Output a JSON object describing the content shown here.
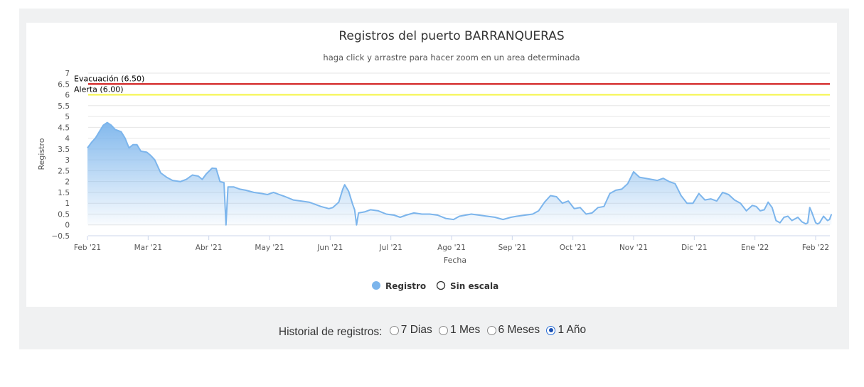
{
  "chart_data": {
    "type": "area",
    "title": "Registros del puerto BARRANQUERAS",
    "subtitle": "haga click y arrastre para hacer zoom en un area determinada",
    "xlabel": "Fecha",
    "ylabel": "Registro",
    "ylim": [
      -0.5,
      7
    ],
    "yticks": [
      "7",
      "6.5",
      "6",
      "5.5",
      "5",
      "4.5",
      "4",
      "3.5",
      "3",
      "2.5",
      "2",
      "1.5",
      "1",
      "0.5",
      "0",
      "−0.5"
    ],
    "x_ticks": [
      "Feb '21",
      "Mar '21",
      "Abr '21",
      "May '21",
      "Jun '21",
      "Jul '21",
      "Ago '21",
      "Sep '21",
      "Oct '21",
      "Nov '21",
      "Dic '21",
      "Ene '22",
      "Feb '22"
    ],
    "x_range": [
      "2021-01-30",
      "2022-02-02"
    ],
    "grid": true,
    "legend_position": "bottom",
    "plot_lines": [
      {
        "label": "Evacuación (6.50)",
        "value": 6.5,
        "color": "#cc0000"
      },
      {
        "label": "Alerta (6.00)",
        "value": 6.0,
        "color": "#f5f542"
      }
    ],
    "series": [
      {
        "name": "Registro",
        "color": "#7cb5ec",
        "points": [
          [
            "2021-01-30",
            3.55
          ],
          [
            "2021-02-01",
            3.8
          ],
          [
            "2021-02-03",
            4.0
          ],
          [
            "2021-02-05",
            4.3
          ],
          [
            "2021-02-07",
            4.6
          ],
          [
            "2021-02-09",
            4.72
          ],
          [
            "2021-02-11",
            4.6
          ],
          [
            "2021-02-13",
            4.4
          ],
          [
            "2021-02-16",
            4.3
          ],
          [
            "2021-02-18",
            4.0
          ],
          [
            "2021-02-20",
            3.55
          ],
          [
            "2021-02-22",
            3.7
          ],
          [
            "2021-02-24",
            3.7
          ],
          [
            "2021-02-26",
            3.4
          ],
          [
            "2021-03-01",
            3.35
          ],
          [
            "2021-03-03",
            3.2
          ],
          [
            "2021-03-05",
            3.0
          ],
          [
            "2021-03-08",
            2.4
          ],
          [
            "2021-03-11",
            2.2
          ],
          [
            "2021-03-14",
            2.05
          ],
          [
            "2021-03-18",
            2.0
          ],
          [
            "2021-03-21",
            2.1
          ],
          [
            "2021-03-24",
            2.3
          ],
          [
            "2021-03-27",
            2.25
          ],
          [
            "2021-03-29",
            2.1
          ],
          [
            "2021-03-31",
            2.35
          ],
          [
            "2021-04-03",
            2.62
          ],
          [
            "2021-04-05",
            2.6
          ],
          [
            "2021-04-07",
            2.0
          ],
          [
            "2021-04-09",
            1.95
          ],
          [
            "2021-04-10",
            0.0
          ],
          [
            "2021-04-11",
            1.75
          ],
          [
            "2021-04-14",
            1.75
          ],
          [
            "2021-04-17",
            1.65
          ],
          [
            "2021-04-20",
            1.6
          ],
          [
            "2021-04-24",
            1.5
          ],
          [
            "2021-04-28",
            1.45
          ],
          [
            "2021-05-01",
            1.4
          ],
          [
            "2021-05-04",
            1.5
          ],
          [
            "2021-05-07",
            1.4
          ],
          [
            "2021-05-10",
            1.3
          ],
          [
            "2021-05-14",
            1.15
          ],
          [
            "2021-05-18",
            1.1
          ],
          [
            "2021-05-22",
            1.05
          ],
          [
            "2021-05-25",
            0.95
          ],
          [
            "2021-05-28",
            0.85
          ],
          [
            "2021-06-01",
            0.75
          ],
          [
            "2021-06-03",
            0.8
          ],
          [
            "2021-06-06",
            1.05
          ],
          [
            "2021-06-08",
            1.65
          ],
          [
            "2021-06-09",
            1.85
          ],
          [
            "2021-06-11",
            1.55
          ],
          [
            "2021-06-13",
            0.95
          ],
          [
            "2021-06-14",
            0.7
          ],
          [
            "2021-06-15",
            0.0
          ],
          [
            "2021-06-16",
            0.55
          ],
          [
            "2021-06-19",
            0.6
          ],
          [
            "2021-06-22",
            0.7
          ],
          [
            "2021-06-26",
            0.65
          ],
          [
            "2021-06-30",
            0.5
          ],
          [
            "2021-07-04",
            0.45
          ],
          [
            "2021-07-07",
            0.35
          ],
          [
            "2021-07-10",
            0.45
          ],
          [
            "2021-07-14",
            0.55
          ],
          [
            "2021-07-18",
            0.5
          ],
          [
            "2021-07-22",
            0.5
          ],
          [
            "2021-07-26",
            0.45
          ],
          [
            "2021-07-30",
            0.3
          ],
          [
            "2021-08-03",
            0.25
          ],
          [
            "2021-08-06",
            0.4
          ],
          [
            "2021-08-09",
            0.45
          ],
          [
            "2021-08-12",
            0.5
          ],
          [
            "2021-08-16",
            0.45
          ],
          [
            "2021-08-20",
            0.4
          ],
          [
            "2021-08-24",
            0.35
          ],
          [
            "2021-08-28",
            0.25
          ],
          [
            "2021-09-01",
            0.35
          ],
          [
            "2021-09-04",
            0.4
          ],
          [
            "2021-09-08",
            0.45
          ],
          [
            "2021-09-12",
            0.5
          ],
          [
            "2021-09-15",
            0.65
          ],
          [
            "2021-09-18",
            1.05
          ],
          [
            "2021-09-21",
            1.35
          ],
          [
            "2021-09-24",
            1.3
          ],
          [
            "2021-09-27",
            1.0
          ],
          [
            "2021-09-30",
            1.1
          ],
          [
            "2021-10-03",
            0.75
          ],
          [
            "2021-10-06",
            0.8
          ],
          [
            "2021-10-09",
            0.5
          ],
          [
            "2021-10-12",
            0.55
          ],
          [
            "2021-10-15",
            0.8
          ],
          [
            "2021-10-18",
            0.85
          ],
          [
            "2021-10-21",
            1.45
          ],
          [
            "2021-10-24",
            1.6
          ],
          [
            "2021-10-27",
            1.65
          ],
          [
            "2021-10-30",
            1.9
          ],
          [
            "2021-11-02",
            2.45
          ],
          [
            "2021-11-05",
            2.2
          ],
          [
            "2021-11-08",
            2.15
          ],
          [
            "2021-11-11",
            2.1
          ],
          [
            "2021-11-14",
            2.05
          ],
          [
            "2021-11-17",
            2.15
          ],
          [
            "2021-11-20",
            2.0
          ],
          [
            "2021-11-23",
            1.9
          ],
          [
            "2021-11-26",
            1.35
          ],
          [
            "2021-11-29",
            1.0
          ],
          [
            "2021-12-02",
            1.0
          ],
          [
            "2021-12-05",
            1.45
          ],
          [
            "2021-12-08",
            1.15
          ],
          [
            "2021-12-11",
            1.2
          ],
          [
            "2021-12-14",
            1.1
          ],
          [
            "2021-12-17",
            1.5
          ],
          [
            "2021-12-20",
            1.4
          ],
          [
            "2021-12-23",
            1.15
          ],
          [
            "2021-12-26",
            1.0
          ],
          [
            "2021-12-29",
            0.65
          ],
          [
            "2022-01-01",
            0.9
          ],
          [
            "2022-01-03",
            0.85
          ],
          [
            "2022-01-05",
            0.65
          ],
          [
            "2022-01-07",
            0.7
          ],
          [
            "2022-01-09",
            1.05
          ],
          [
            "2022-01-11",
            0.8
          ],
          [
            "2022-01-13",
            0.2
          ],
          [
            "2022-01-15",
            0.1
          ],
          [
            "2022-01-17",
            0.35
          ],
          [
            "2022-01-19",
            0.4
          ],
          [
            "2022-01-21",
            0.2
          ],
          [
            "2022-01-24",
            0.35
          ],
          [
            "2022-01-26",
            0.15
          ],
          [
            "2022-01-28",
            0.05
          ],
          [
            "2022-01-29",
            0.1
          ],
          [
            "2022-01-30",
            0.8
          ],
          [
            "2022-01-31",
            0.6
          ],
          [
            "2022-02-02",
            0.1
          ],
          [
            "2022-02-03",
            0.05
          ],
          [
            "2022-02-04",
            0.1
          ],
          [
            "2022-02-06",
            0.4
          ],
          [
            "2022-02-08",
            0.2
          ],
          [
            "2022-02-09",
            0.25
          ],
          [
            "2022-02-10",
            0.5
          ]
        ]
      }
    ]
  },
  "legend": {
    "items": [
      {
        "label": "Registro",
        "color": "#7cb5ec",
        "filled": true
      },
      {
        "label": "Sin escala",
        "color": "#333333",
        "filled": false
      }
    ]
  },
  "history": {
    "label": "Historial de registros:",
    "options": [
      {
        "label": "7 Dias",
        "checked": false
      },
      {
        "label": "1 Mes",
        "checked": false
      },
      {
        "label": "6 Meses",
        "checked": false
      },
      {
        "label": "1 Año",
        "checked": true
      }
    ]
  }
}
